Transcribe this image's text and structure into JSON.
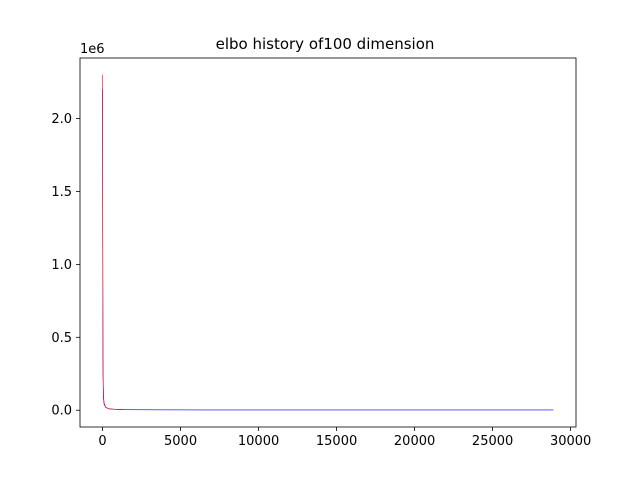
{
  "chart_data": {
    "type": "line",
    "title": "elbo history of100 dimension",
    "xlabel": "",
    "ylabel": "",
    "xlim": [
      -1445,
      30345
    ],
    "ylim": [
      -0.115,
      2.415
    ],
    "y_offset_label": "1e6",
    "x_ticks": [
      0,
      5000,
      10000,
      15000,
      20000,
      25000,
      30000
    ],
    "x_tick_labels": [
      "0",
      "5000",
      "10000",
      "15000",
      "20000",
      "25000",
      "30000"
    ],
    "y_ticks": [
      0.0,
      0.5,
      1.0,
      1.5,
      2.0
    ],
    "y_tick_labels": [
      "0.0",
      "0.5",
      "1.0",
      "1.5",
      "2.0"
    ],
    "grid": false,
    "series": [
      {
        "color": "#0000ff",
        "x": [
          0,
          10,
          30,
          60,
          100,
          200,
          400,
          800,
          1500,
          3000,
          6000,
          10000,
          15000,
          20000,
          25000,
          28900
        ],
        "y": [
          2.2,
          1.2,
          0.25,
          0.08,
          0.04,
          0.02,
          0.01,
          0.006,
          0.004,
          0.003,
          0.002,
          0.002,
          0.002,
          0.002,
          0.002,
          0.002
        ]
      },
      {
        "color": "#ff0000",
        "x": [
          0,
          10,
          30,
          60,
          100,
          200,
          400,
          800,
          1200,
          1500
        ],
        "y": [
          2.3,
          1.4,
          0.3,
          0.1,
          0.05,
          0.02,
          0.01,
          0.006,
          0.005,
          0.004
        ]
      }
    ]
  }
}
